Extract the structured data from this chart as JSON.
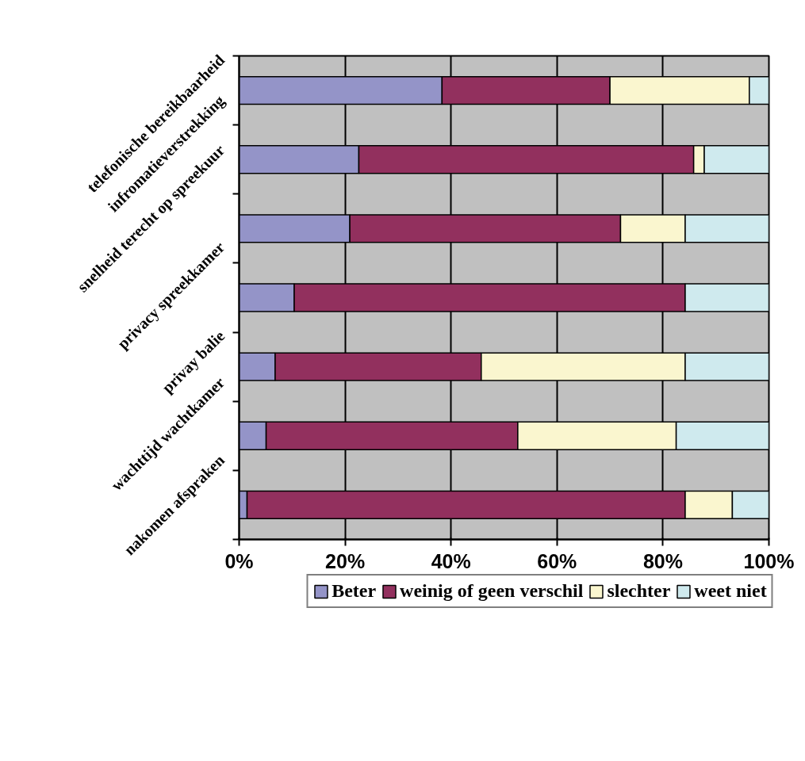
{
  "chart_data": {
    "type": "bar",
    "orientation": "horizontal",
    "stacked": true,
    "categories": [
      "telefonische bereikbaarheid",
      "infromatieverstrekking",
      "snelheid terecht op spreekuur",
      "privacy spreekkamer",
      "privay balie",
      "wachttijd wachtkamer",
      "nakomen afspraken"
    ],
    "series": [
      {
        "name": "Beter",
        "color": "#9494c8",
        "values": [
          38.3,
          22.6,
          20.9,
          10.4,
          6.8,
          5.1,
          1.5
        ]
      },
      {
        "name": "weinig of geen verschil",
        "color": "#92305e",
        "values": [
          31.7,
          63.2,
          51.1,
          73.8,
          38.9,
          47.5,
          82.7
        ]
      },
      {
        "name": "slechter",
        "color": "#faf6cf",
        "values": [
          26.3,
          2.0,
          12.2,
          0,
          38.5,
          29.9,
          8.9
        ]
      },
      {
        "name": "weet niet",
        "color": "#cfeaee",
        "values": [
          3.7,
          12.2,
          15.8,
          15.8,
          15.8,
          17.5,
          6.9
        ]
      }
    ],
    "xlim": [
      0,
      100
    ],
    "xticks": [
      {
        "value": 0,
        "label": "0%"
      },
      {
        "value": 20,
        "label": "20%"
      },
      {
        "value": 40,
        "label": "40%"
      },
      {
        "value": 60,
        "label": "60%"
      },
      {
        "value": 80,
        "label": "80%"
      },
      {
        "value": 100,
        "label": "100%"
      }
    ],
    "grid": "x",
    "legend": "bottom"
  }
}
